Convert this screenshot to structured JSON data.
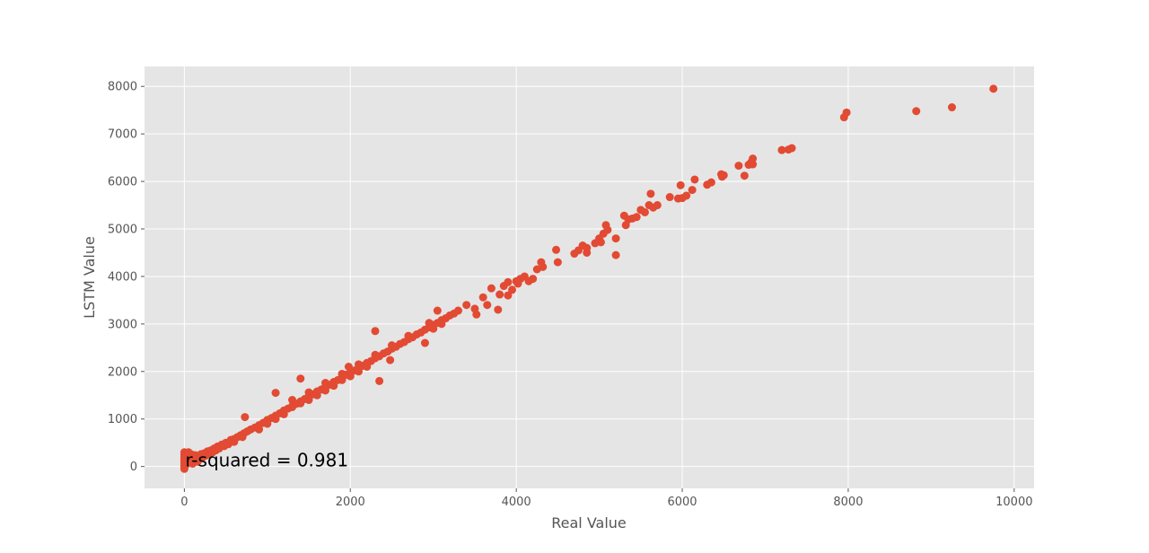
{
  "chart_data": {
    "type": "scatter",
    "title": "",
    "xlabel": "Real Value",
    "ylabel": "LSTM Value",
    "xlim": [
      -480,
      10240
    ],
    "ylim": [
      -460,
      8420
    ],
    "xticks": [
      0,
      2000,
      4000,
      6000,
      8000,
      10000
    ],
    "yticks": [
      0,
      1000,
      2000,
      3000,
      4000,
      5000,
      6000,
      7000,
      8000
    ],
    "xtick_labels": [
      "0",
      "2000",
      "4000",
      "6000",
      "8000",
      "10000"
    ],
    "ytick_labels": [
      "0",
      "1000",
      "2000",
      "3000",
      "4000",
      "5000",
      "6000",
      "7000",
      "8000"
    ],
    "grid": true,
    "style": "ggplot",
    "point_color": "#e24a33",
    "background_color": "#e5e5e5",
    "annotation": {
      "text": "r-squared = 0.981",
      "x": 0,
      "y": 0
    },
    "series": [
      {
        "points": [
          [
            0,
            -50
          ],
          [
            0,
            0
          ],
          [
            0,
            50
          ],
          [
            0,
            100
          ],
          [
            0,
            150
          ],
          [
            0,
            200
          ],
          [
            0,
            250
          ],
          [
            0,
            300
          ],
          [
            20,
            40
          ],
          [
            30,
            120
          ],
          [
            40,
            220
          ],
          [
            50,
            300
          ],
          [
            60,
            80
          ],
          [
            70,
            180
          ],
          [
            80,
            260
          ],
          [
            90,
            110
          ],
          [
            100,
            60
          ],
          [
            110,
            200
          ],
          [
            120,
            140
          ],
          [
            130,
            240
          ],
          [
            150,
            180
          ],
          [
            160,
            100
          ],
          [
            180,
            220
          ],
          [
            200,
            260
          ],
          [
            220,
            190
          ],
          [
            240,
            280
          ],
          [
            260,
            230
          ],
          [
            280,
            320
          ],
          [
            300,
            260
          ],
          [
            320,
            340
          ],
          [
            340,
            300
          ],
          [
            360,
            380
          ],
          [
            380,
            340
          ],
          [
            400,
            420
          ],
          [
            420,
            380
          ],
          [
            450,
            460
          ],
          [
            480,
            430
          ],
          [
            500,
            500
          ],
          [
            530,
            470
          ],
          [
            560,
            560
          ],
          [
            600,
            580
          ],
          [
            640,
            620
          ],
          [
            680,
            660
          ],
          [
            720,
            700
          ],
          [
            760,
            740
          ],
          [
            800,
            780
          ],
          [
            850,
            820
          ],
          [
            900,
            870
          ],
          [
            950,
            920
          ],
          [
            1000,
            980
          ],
          [
            1050,
            1020
          ],
          [
            1100,
            1070
          ],
          [
            1150,
            1120
          ],
          [
            1200,
            1180
          ],
          [
            1250,
            1220
          ],
          [
            1300,
            1270
          ],
          [
            1350,
            1320
          ],
          [
            1400,
            1370
          ],
          [
            1450,
            1420
          ],
          [
            1500,
            1480
          ],
          [
            1550,
            1520
          ],
          [
            1600,
            1580
          ],
          [
            1650,
            1620
          ],
          [
            1700,
            1680
          ],
          [
            1750,
            1720
          ],
          [
            1800,
            1780
          ],
          [
            1850,
            1820
          ],
          [
            1900,
            1880
          ],
          [
            1950,
            1930
          ],
          [
            2000,
            1980
          ],
          [
            2050,
            2020
          ],
          [
            2100,
            2080
          ],
          [
            2150,
            2120
          ],
          [
            2200,
            2180
          ],
          [
            2250,
            2220
          ],
          [
            2300,
            2280
          ],
          [
            2350,
            2320
          ],
          [
            2400,
            2380
          ],
          [
            2450,
            2420
          ],
          [
            2500,
            2480
          ],
          [
            2550,
            2520
          ],
          [
            2600,
            2580
          ],
          [
            2650,
            2620
          ],
          [
            2700,
            2680
          ],
          [
            2750,
            2720
          ],
          [
            2800,
            2780
          ],
          [
            2850,
            2820
          ],
          [
            2900,
            2880
          ],
          [
            2950,
            2930
          ],
          [
            3000,
            2980
          ],
          [
            3050,
            3020
          ],
          [
            3100,
            3080
          ],
          [
            3150,
            3120
          ],
          [
            3200,
            3180
          ],
          [
            3250,
            3220
          ],
          [
            3300,
            3280
          ],
          [
            600,
            520
          ],
          [
            700,
            620
          ],
          [
            900,
            780
          ],
          [
            1000,
            900
          ],
          [
            1100,
            1000
          ],
          [
            1200,
            1100
          ],
          [
            1300,
            1250
          ],
          [
            1400,
            1330
          ],
          [
            1500,
            1400
          ],
          [
            1600,
            1500
          ],
          [
            1700,
            1600
          ],
          [
            1800,
            1700
          ],
          [
            1900,
            1820
          ],
          [
            2000,
            1900
          ],
          [
            2100,
            2000
          ],
          [
            2200,
            2100
          ],
          [
            1300,
            1400
          ],
          [
            1500,
            1560
          ],
          [
            1700,
            1760
          ],
          [
            1900,
            1950
          ],
          [
            2100,
            2150
          ],
          [
            2300,
            2350
          ],
          [
            2500,
            2550
          ],
          [
            2700,
            2750
          ],
          [
            730,
            1040
          ],
          [
            1100,
            1550
          ],
          [
            1400,
            1850
          ],
          [
            2300,
            2850
          ],
          [
            2350,
            1800
          ],
          [
            1980,
            2100
          ],
          [
            2480,
            2240
          ],
          [
            2900,
            2600
          ],
          [
            3050,
            3280
          ],
          [
            3100,
            3000
          ],
          [
            3000,
            2900
          ],
          [
            2950,
            3020
          ],
          [
            3400,
            3400
          ],
          [
            3520,
            3200
          ],
          [
            3500,
            3320
          ],
          [
            3600,
            3560
          ],
          [
            3650,
            3400
          ],
          [
            3700,
            3750
          ],
          [
            3780,
            3300
          ],
          [
            3800,
            3620
          ],
          [
            3850,
            3800
          ],
          [
            3900,
            3600
          ],
          [
            3900,
            3880
          ],
          [
            3950,
            3720
          ],
          [
            4000,
            3900
          ],
          [
            4020,
            3850
          ],
          [
            4050,
            3950
          ],
          [
            4100,
            4000
          ],
          [
            4150,
            3900
          ],
          [
            4200,
            3950
          ],
          [
            4250,
            4150
          ],
          [
            4300,
            4300
          ],
          [
            4320,
            4200
          ],
          [
            4480,
            4560
          ],
          [
            4500,
            4300
          ],
          [
            4700,
            4480
          ],
          [
            4750,
            4550
          ],
          [
            4800,
            4650
          ],
          [
            4850,
            4500
          ],
          [
            4850,
            4600
          ],
          [
            4950,
            4700
          ],
          [
            5000,
            4800
          ],
          [
            5020,
            4720
          ],
          [
            5050,
            4900
          ],
          [
            5080,
            5080
          ],
          [
            5100,
            4980
          ],
          [
            5200,
            4800
          ],
          [
            5200,
            4450
          ],
          [
            5300,
            5280
          ],
          [
            5320,
            5080
          ],
          [
            5350,
            5200
          ],
          [
            5400,
            5220
          ],
          [
            5450,
            5250
          ],
          [
            5500,
            5400
          ],
          [
            5550,
            5350
          ],
          [
            5600,
            5500
          ],
          [
            5620,
            5740
          ],
          [
            5650,
            5450
          ],
          [
            5700,
            5500
          ],
          [
            5850,
            5670
          ],
          [
            5950,
            5640
          ],
          [
            5980,
            5920
          ],
          [
            6000,
            5650
          ],
          [
            6050,
            5700
          ],
          [
            6120,
            5820
          ],
          [
            6150,
            6040
          ],
          [
            6300,
            5930
          ],
          [
            6350,
            5980
          ],
          [
            6470,
            6150
          ],
          [
            6480,
            6100
          ],
          [
            6500,
            6130
          ],
          [
            6680,
            6330
          ],
          [
            6750,
            6120
          ],
          [
            6800,
            6350
          ],
          [
            6830,
            6400
          ],
          [
            6850,
            6480
          ],
          [
            6850,
            6360
          ],
          [
            7200,
            6660
          ],
          [
            7280,
            6670
          ],
          [
            7320,
            6700
          ],
          [
            7950,
            7350
          ],
          [
            7980,
            7450
          ],
          [
            8820,
            7480
          ],
          [
            9250,
            7560
          ],
          [
            9750,
            7950
          ]
        ]
      }
    ]
  }
}
